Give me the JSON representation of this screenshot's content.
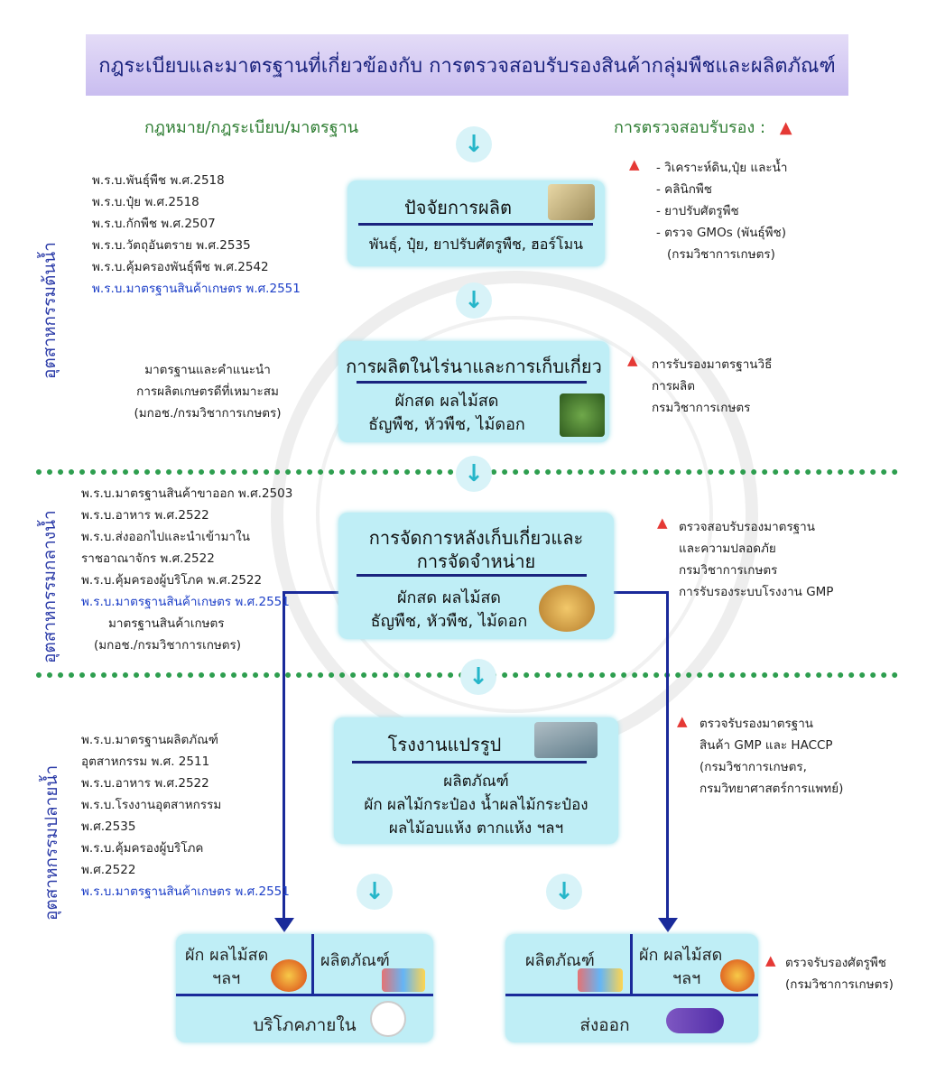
{
  "header": {
    "title": "กฎระเบียบและมาตรฐานที่เกี่ยวข้องกับ การตรวจสอบรับรองสินค้ากลุ่มพืชและผลิตภัณฑ์"
  },
  "columns": {
    "left_title": "กฎหมาย/กฎระเบียบ/มาตรฐาน",
    "right_title": "การตรวจสอบรับรอง :",
    "triangle": "▲"
  },
  "side_labels": {
    "upstream": "อุตสาหกรรมต้นน้ำ",
    "midstream": "อุตสาหกรรมกลางน้ำ",
    "downstream": "อุตสาหกรรมปลายน้ำ"
  },
  "boxes": {
    "inputs": {
      "title": "ปัจจัยการผลิต",
      "sub": "พันธุ์, ปุ๋ย, ยาปรับศัตรูพืช, ฮอร์โมน"
    },
    "farm": {
      "title": "การผลิตในไร่นาและการเก็บเกี่ยว",
      "sub1": "ผักสด ผลไม้สด",
      "sub2": "ธัญพืช, หัวพืช, ไม้ดอก"
    },
    "postharvest": {
      "title1": "การจัดการหลังเก็บเกี่ยวและ",
      "title2": "การจัดจำหน่าย",
      "sub1": "ผักสด ผลไม้สด",
      "sub2": "ธัญพืช, หัวพืช, ไม้ดอก"
    },
    "factory": {
      "title": "โรงงานแปรรูป",
      "sub1": "ผลิตภัณฑ์",
      "sub2": "ผัก ผลไม้กระป๋อง น้ำผลไม้กระป๋อง",
      "sub3": "ผลไม้อบแห้ง ตากแห้ง ฯลฯ"
    },
    "domestic": {
      "left1": "ผัก ผลไม้สด",
      "left2": "ฯลฯ",
      "right": "ผลิตภัณฑ์",
      "bottom": "บริโภคภายใน"
    },
    "export": {
      "left": "ผลิตภัณฑ์",
      "right1": "ผัก ผลไม้สด",
      "right2": "ฯลฯ",
      "bottom": "ส่งออก"
    }
  },
  "laws_upstream": [
    "พ.ร.บ.พันธุ์พืช พ.ศ.2518",
    "พ.ร.บ.ปุ๋ย พ.ศ.2518",
    "พ.ร.บ.กักพืช พ.ศ.2507",
    "พ.ร.บ.วัตถุอันตราย พ.ศ.2535",
    "พ.ร.บ.คุ้มครองพันธุ์พืช พ.ศ.2542",
    "พ.ร.บ.มาตรฐานสินค้าเกษตร พ.ศ.2551"
  ],
  "standard_gap": [
    "มาตรฐานและคำแนะนำ",
    "การผลิตเกษตรดีที่เหมาะสม",
    "(มกอช./กรมวิชาการเกษตร)"
  ],
  "laws_midstream": [
    "พ.ร.บ.มาตรฐานสินค้าขาออก พ.ศ.2503",
    "พ.ร.บ.อาหาร พ.ศ.2522",
    "พ.ร.บ.ส่งออกไปและนำเข้ามาใน",
    "ราชอาณาจักร พ.ศ.2522",
    "พ.ร.บ.คุ้มครองผู้บริโภค พ.ศ.2522",
    "พ.ร.บ.มาตรฐานสินค้าเกษตร พ.ศ.2551",
    "มาตรฐานสินค้าเกษตร",
    "(มกอช./กรมวิชาการเกษตร)"
  ],
  "laws_downstream": [
    "พ.ร.บ.มาตรฐานผลิตภัณฑ์",
    "อุตสาหกรรม พ.ศ. 2511",
    "พ.ร.บ.อาหาร พ.ศ.2522",
    "พ.ร.บ.โรงงานอุตสาหกรรม",
    "พ.ศ.2535",
    "พ.ร.บ.คุ้มครองผู้บริโภค",
    "พ.ศ.2522",
    "พ.ร.บ.มาตรฐานสินค้าเกษตร พ.ศ.2551"
  ],
  "cert_inputs": [
    "- วิเคราะห์ดิน,ปุ๋ย และน้ำ",
    "- คลินิกพืช",
    "- ยาปรับศัตรูพืช",
    "- ตรวจ GMOs (พันธุ์พืช)",
    "(กรมวิชาการเกษตร)"
  ],
  "cert_farm": [
    "การรับรองมาตรฐานวิธี",
    "การผลิต",
    "กรมวิชาการเกษตร"
  ],
  "cert_postharvest": [
    "ตรวจสอบรับรองมาตรฐาน",
    "และความปลอดภัย",
    "กรมวิชาการเกษตร",
    "การรับรองระบบโรงงาน GMP"
  ],
  "cert_factory": [
    "ตรวจรับรองมาตรฐาน",
    "สินค้า GMP และ HACCP",
    "(กรมวิชาการเกษตร,",
    "กรมวิทยาศาสตร์การแพทย์)"
  ],
  "cert_export": [
    "ตรวจรับรองศัตรูพืช",
    "(กรมวิชาการเกษตร)"
  ],
  "icons": {
    "down_arrow": "↓",
    "seal": "seal-watermark-icon",
    "sacks": "fertilizer-sacks-icon",
    "plants": "vegetable-field-icon",
    "basket": "produce-basket-icon",
    "factory": "factory-building-icon",
    "fruit": "fruit-bowl-icon",
    "cans": "canned-products-icon",
    "mascot": "mascot-icon",
    "plane": "airplane-icon"
  },
  "colors": {
    "box": "#bfeef6",
    "navy": "#1a2a9a",
    "green_title": "#2e7d32",
    "blue_law": "#1e40c8",
    "dotted": "#2e9e4f",
    "triangle": "#e53935"
  }
}
